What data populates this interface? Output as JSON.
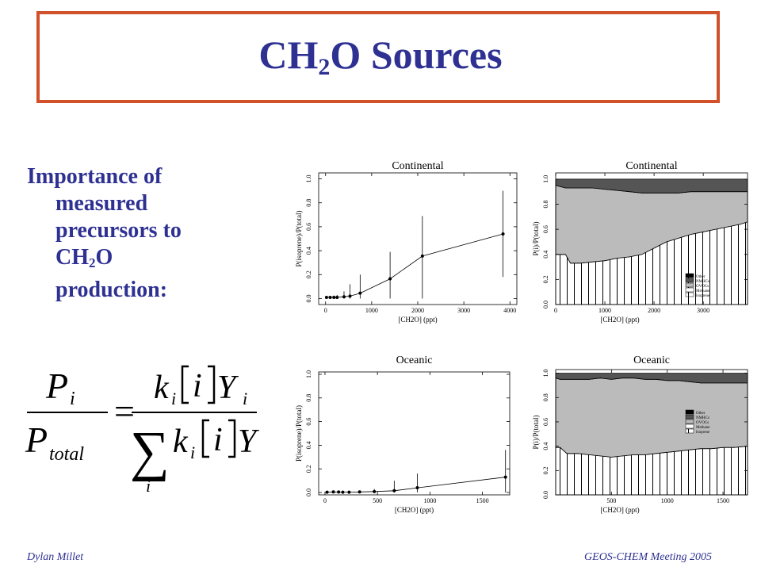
{
  "slide": {
    "title_main": "CH",
    "title_sub": "2",
    "title_rest": "O Sources",
    "bullet": {
      "line1": "Importance of",
      "line2": "measured",
      "line3": "precursors to",
      "line4_main": "CH",
      "line4_sub": "2",
      "line4_rest": "O",
      "line5": "production:"
    },
    "formula": {
      "lhs_num": "P",
      "lhs_num_sub": "i",
      "lhs_den": "P",
      "lhs_den_sub": "total",
      "equals": "=",
      "rhs_num_k": "k",
      "rhs_num_k_sub": "i",
      "rhs_num_i": "i",
      "rhs_num_Y": "Y",
      "rhs_num_Y_sub": "i",
      "rhs_sum": "∑",
      "rhs_sum_sub": "i",
      "rhs_den_k": "k",
      "rhs_den_k_sub": "i",
      "rhs_den_i": "i",
      "rhs_den_Y": "Y"
    },
    "footer_left": "Dylan Millet",
    "footer_right": "GEOS-CHEM Meeting 2005"
  },
  "chart_data": [
    {
      "type": "line",
      "title": "Continental",
      "xlabel": "[CH2O] (ppt)",
      "ylabel": "P(isoprene)/P(total)",
      "xlim": [
        -150,
        4150
      ],
      "ylim": [
        -0.05,
        1.05
      ],
      "xticks": [
        0,
        1000,
        2000,
        3000,
        4000
      ],
      "yticks": [
        0.0,
        0.2,
        0.4,
        0.6,
        0.8,
        1.0
      ],
      "x": [
        20,
        100,
        180,
        250,
        400,
        530,
        750,
        1400,
        2100,
        3850
      ],
      "y": [
        0.01,
        0.01,
        0.01,
        0.01,
        0.015,
        0.02,
        0.045,
        0.165,
        0.355,
        0.54
      ],
      "err_low": [
        0.0,
        0.0,
        0.0,
        0.0,
        0.0,
        0.0,
        0.0,
        0.0,
        0.0,
        0.18
      ],
      "err_high": [
        0.01,
        0.02,
        0.025,
        0.03,
        0.06,
        0.12,
        0.2,
        0.39,
        0.69,
        0.9
      ]
    },
    {
      "type": "area",
      "title": "Continental",
      "xlabel": "[CH2O] (ppt)",
      "ylabel": "P(i)/P(total)",
      "xlim": [
        0,
        3900
      ],
      "ylim": [
        0,
        1.05
      ],
      "xticks": [
        0,
        1000,
        2000,
        3000
      ],
      "yticks": [
        0.0,
        0.2,
        0.4,
        0.6,
        0.8,
        1.0
      ],
      "legend": [
        "Other",
        "NMHCs",
        "OVOCs",
        "Methane",
        "Isoprene"
      ],
      "legend_colors": [
        "#000000",
        "#555555",
        "#bbbbbb",
        "#ffffff",
        "hatch"
      ],
      "x": [
        0,
        200,
        300,
        500,
        750,
        1000,
        1250,
        1500,
        1750,
        2000,
        2250,
        2500,
        2750,
        3000,
        3250,
        3500,
        3750,
        3900
      ],
      "isoprene_top": [
        0.4,
        0.4,
        0.33,
        0.33,
        0.34,
        0.35,
        0.37,
        0.38,
        0.4,
        0.45,
        0.5,
        0.53,
        0.56,
        0.58,
        0.6,
        0.62,
        0.64,
        0.66
      ],
      "methane_top": [
        0.4,
        0.4,
        0.33,
        0.33,
        0.34,
        0.35,
        0.37,
        0.38,
        0.4,
        0.45,
        0.5,
        0.53,
        0.56,
        0.58,
        0.6,
        0.62,
        0.64,
        0.66
      ],
      "ovocs_top": [
        0.95,
        0.93,
        0.93,
        0.93,
        0.93,
        0.92,
        0.91,
        0.9,
        0.89,
        0.89,
        0.89,
        0.89,
        0.9,
        0.9,
        0.9,
        0.9,
        0.9,
        0.9
      ],
      "nmhcs_top": [
        1.0,
        1.0,
        1.0,
        1.0,
        1.0,
        1.0,
        1.0,
        1.0,
        1.0,
        1.0,
        1.0,
        1.0,
        1.0,
        1.0,
        1.0,
        1.0,
        1.0,
        1.0
      ]
    },
    {
      "type": "line",
      "title": "Oceanic",
      "xlabel": "[CH2O] (ppt)",
      "ylabel": "P(isoprene)/P(total)",
      "xlim": [
        -60,
        1760
      ],
      "ylim": [
        -0.02,
        1.02
      ],
      "xticks": [
        0,
        500,
        1000,
        1500
      ],
      "yticks": [
        0.0,
        0.2,
        0.4,
        0.6,
        0.8,
        1.0
      ],
      "x": [
        20,
        80,
        130,
        170,
        230,
        330,
        470,
        660,
        880,
        1720
      ],
      "y": [
        0.003,
        0.005,
        0.004,
        0.003,
        0.003,
        0.005,
        0.008,
        0.015,
        0.04,
        0.13
      ],
      "err_low": [
        0.0,
        0.0,
        0.0,
        0.0,
        0.0,
        0.0,
        0.0,
        0.0,
        0.0,
        0.0
      ],
      "err_high": [
        0.01,
        0.015,
        0.012,
        0.012,
        0.012,
        0.015,
        0.03,
        0.1,
        0.16,
        0.36
      ]
    },
    {
      "type": "area",
      "title": "Oceanic",
      "xlabel": "[CH2O] (ppt)",
      "ylabel": "P(i)/P(total)",
      "xlim": [
        0,
        1720
      ],
      "ylim": [
        0,
        1.03
      ],
      "xticks": [
        500,
        1000,
        1500
      ],
      "yticks": [
        0.0,
        0.2,
        0.4,
        0.6,
        0.8,
        1.0
      ],
      "legend": [
        "Other",
        "NMHCs",
        "OVOCs",
        "Methane",
        "Isoprene"
      ],
      "legend_colors": [
        "#000000",
        "#555555",
        "#bbbbbb",
        "#ffffff",
        "hatch"
      ],
      "x": [
        0,
        40,
        100,
        200,
        300,
        400,
        500,
        600,
        700,
        800,
        900,
        1000,
        1100,
        1200,
        1300,
        1400,
        1500,
        1600,
        1720
      ],
      "isoprene_top": [
        0.39,
        0.39,
        0.34,
        0.34,
        0.33,
        0.32,
        0.31,
        0.32,
        0.33,
        0.33,
        0.34,
        0.35,
        0.36,
        0.37,
        0.38,
        0.38,
        0.39,
        0.39,
        0.4
      ],
      "methane_top": [
        0.39,
        0.39,
        0.34,
        0.34,
        0.33,
        0.32,
        0.31,
        0.32,
        0.33,
        0.33,
        0.34,
        0.35,
        0.36,
        0.37,
        0.38,
        0.38,
        0.39,
        0.39,
        0.4
      ],
      "ovocs_top": [
        0.96,
        0.95,
        0.95,
        0.95,
        0.95,
        0.96,
        0.95,
        0.96,
        0.96,
        0.95,
        0.95,
        0.94,
        0.94,
        0.93,
        0.92,
        0.92,
        0.92,
        0.92,
        0.92
      ],
      "nmhcs_top": [
        1.0,
        1.0,
        1.0,
        1.0,
        1.0,
        1.0,
        1.0,
        1.0,
        1.0,
        1.0,
        1.0,
        1.0,
        1.0,
        1.0,
        1.0,
        1.0,
        1.0,
        1.0,
        1.0
      ]
    }
  ]
}
